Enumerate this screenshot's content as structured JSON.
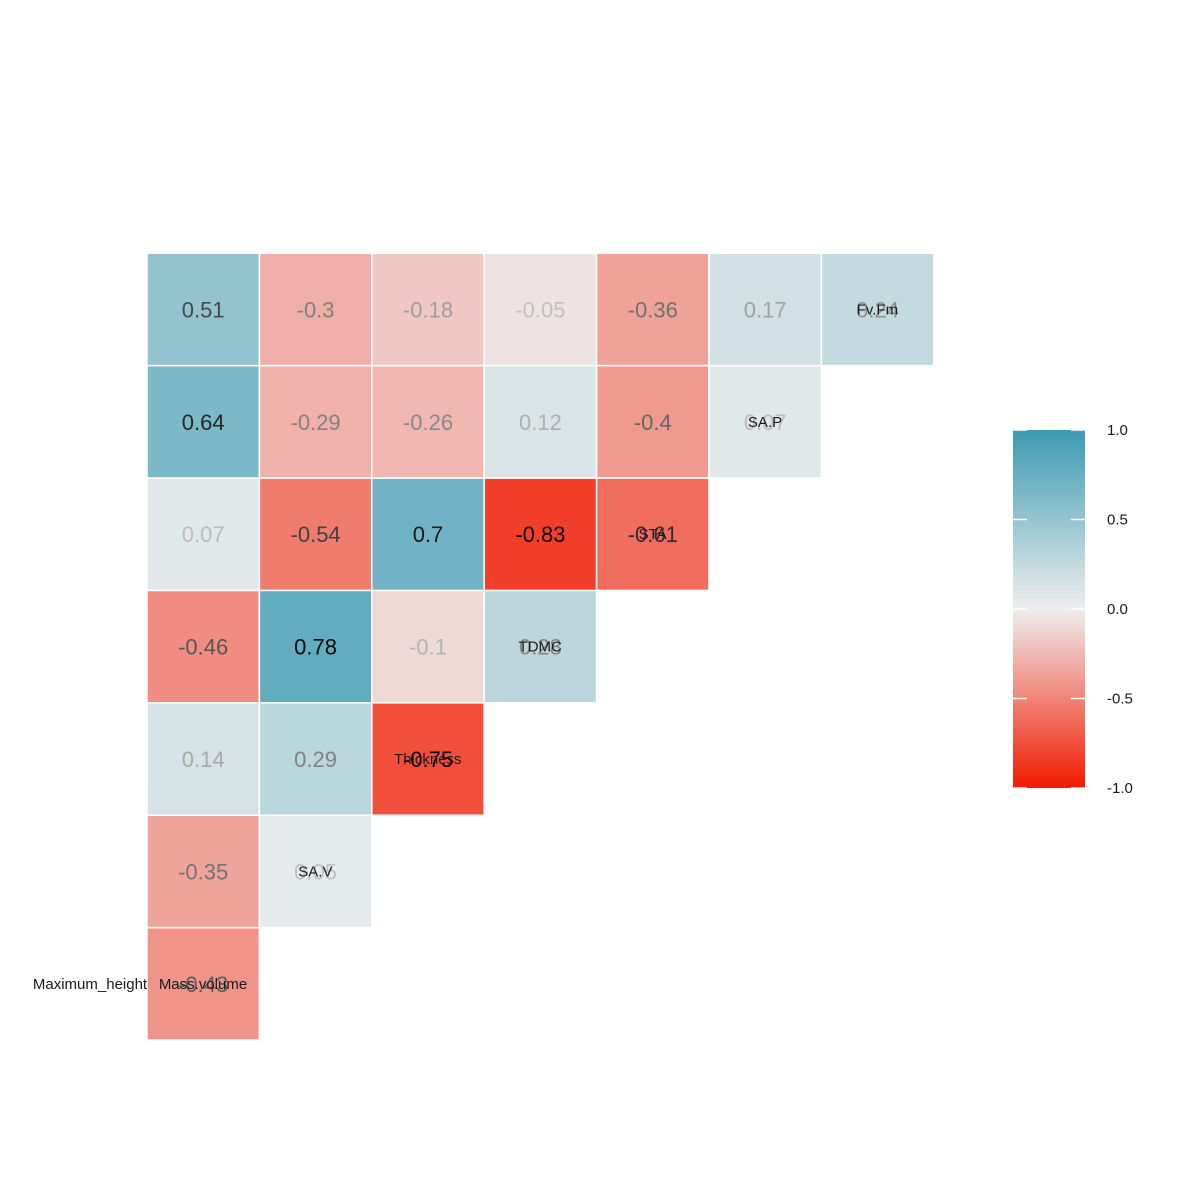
{
  "chart_data": {
    "type": "heatmap",
    "layout": "lower-triangle correlation matrix with variable labels on the diagonal",
    "variables": [
      "Maximum_height",
      "Mass.volume",
      "SA.V",
      "Thickness",
      "TDMC",
      "STA",
      "SA.P",
      "Fv.Fm"
    ],
    "cells": [
      {
        "row": "Mass.volume",
        "col": "Maximum_height",
        "value": -0.43,
        "label": "-0.43"
      },
      {
        "row": "SA.V",
        "col": "Maximum_height",
        "value": -0.35,
        "label": "-0.35"
      },
      {
        "row": "SA.V",
        "col": "Mass.volume",
        "value": 0.05,
        "label": "0.05"
      },
      {
        "row": "Thickness",
        "col": "Maximum_height",
        "value": 0.14,
        "label": "0.14"
      },
      {
        "row": "Thickness",
        "col": "Mass.volume",
        "value": 0.29,
        "label": "0.29"
      },
      {
        "row": "Thickness",
        "col": "SA.V",
        "value": -0.75,
        "label": "-0.75"
      },
      {
        "row": "TDMC",
        "col": "Maximum_height",
        "value": -0.46,
        "label": "-0.46"
      },
      {
        "row": "TDMC",
        "col": "Mass.volume",
        "value": 0.78,
        "label": "0.78"
      },
      {
        "row": "TDMC",
        "col": "SA.V",
        "value": -0.1,
        "label": "-0.1"
      },
      {
        "row": "TDMC",
        "col": "Thickness",
        "value": 0.28,
        "label": "0.28"
      },
      {
        "row": "STA",
        "col": "Maximum_height",
        "value": 0.07,
        "label": "0.07"
      },
      {
        "row": "STA",
        "col": "Mass.volume",
        "value": -0.54,
        "label": "-0.54"
      },
      {
        "row": "STA",
        "col": "SA.V",
        "value": 0.7,
        "label": "0.7"
      },
      {
        "row": "STA",
        "col": "Thickness",
        "value": -0.83,
        "label": "-0.83"
      },
      {
        "row": "STA",
        "col": "TDMC",
        "value": -0.61,
        "label": "-0.61"
      },
      {
        "row": "SA.P",
        "col": "Maximum_height",
        "value": 0.64,
        "label": "0.64"
      },
      {
        "row": "SA.P",
        "col": "Mass.volume",
        "value": -0.29,
        "label": "-0.29"
      },
      {
        "row": "SA.P",
        "col": "SA.V",
        "value": -0.26,
        "label": "-0.26"
      },
      {
        "row": "SA.P",
        "col": "Thickness",
        "value": 0.12,
        "label": "0.12"
      },
      {
        "row": "SA.P",
        "col": "TDMC",
        "value": -0.4,
        "label": "-0.4"
      },
      {
        "row": "SA.P",
        "col": "STA",
        "value": 0.07,
        "label": "0.07"
      },
      {
        "row": "Fv.Fm",
        "col": "Maximum_height",
        "value": 0.51,
        "label": "0.51"
      },
      {
        "row": "Fv.Fm",
        "col": "Mass.volume",
        "value": -0.3,
        "label": "-0.3"
      },
      {
        "row": "Fv.Fm",
        "col": "SA.V",
        "value": -0.18,
        "label": "-0.18"
      },
      {
        "row": "Fv.Fm",
        "col": "Thickness",
        "value": -0.05,
        "label": "-0.05"
      },
      {
        "row": "Fv.Fm",
        "col": "TDMC",
        "value": -0.36,
        "label": "-0.36"
      },
      {
        "row": "Fv.Fm",
        "col": "STA",
        "value": 0.17,
        "label": "0.17"
      },
      {
        "row": "Fv.Fm",
        "col": "SA.P",
        "value": 0.24,
        "label": "0.24"
      }
    ],
    "color_scale": {
      "range": [
        -1.0,
        1.0
      ],
      "low": "#f21a00",
      "mid": "#eeeeee",
      "high": "#3b9ab2",
      "ticks": [
        1.0,
        0.5,
        0.0,
        -0.5,
        -1.0
      ],
      "tick_labels": [
        "1.0",
        "0.5",
        "0.0",
        "-0.5",
        "-1.0"
      ]
    },
    "title": "",
    "xlabel": "",
    "ylabel": "",
    "legend_position": "right",
    "grid": false
  }
}
